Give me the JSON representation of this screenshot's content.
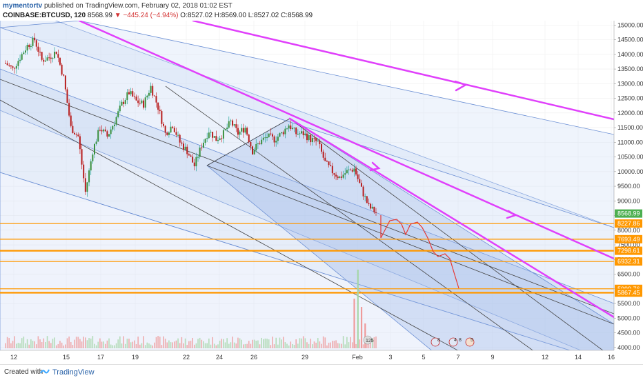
{
  "header": {
    "author": "mymentortv",
    "published": " published on TradingView.com, February 02, 2018 01:02 EST",
    "symbol": "COINBASE:BTCUSD, 120",
    "last": "8568.99",
    "change": "−445.24 (−4.94%)",
    "ohlc": "O:8527.02 H:8569.00 L:8527.02 C:8568.99"
  },
  "footer": {
    "created": "Created with",
    "brand": "TradingView"
  },
  "chart_data": {
    "type": "candlestick",
    "x_ticks": [
      "12",
      "15",
      "17",
      "19",
      "22",
      "24",
      "26",
      "29",
      "Feb",
      "3",
      "5",
      "7",
      "9",
      "12",
      "14",
      "16"
    ],
    "y_ticks": [
      4000,
      4500,
      5000,
      5500,
      6000,
      6500,
      7000,
      7500,
      8000,
      8500,
      9000,
      9500,
      10000,
      10500,
      11000,
      11500,
      12000,
      12500,
      13000,
      13500,
      14000,
      14500,
      15000
    ],
    "ylim": [
      3900,
      15150
    ],
    "y_tick_labels": [
      "4000.00",
      "4500.00",
      "5000.00",
      "5500.00",
      "6000.00",
      "6500.00",
      "7000.00",
      "7500.00",
      "8000.00",
      "8500.00",
      "9000.00",
      "9500.00",
      "10000.00",
      "10500.00",
      "11000.00",
      "11500.00",
      "12000.00",
      "12500.00",
      "13000.00",
      "13500.00",
      "14000.00",
      "14500.00",
      "15000.00"
    ],
    "price_labels": [
      {
        "label": "8568.99",
        "value": 8568.99,
        "color": "#4caf50"
      },
      {
        "label": "8227.86",
        "value": 8227.86,
        "color": "#ff9800"
      },
      {
        "label": "7693.49",
        "value": 7693.49,
        "color": "#ff9800"
      },
      {
        "label": "7298.61",
        "value": 7298.61,
        "color": "#ff9800"
      },
      {
        "label": "6932.31",
        "value": 6932.31,
        "color": "#ff9800"
      },
      {
        "label": "5999.76",
        "value": 5999.76,
        "color": "#ff9800"
      },
      {
        "label": "5867.45",
        "value": 5867.45,
        "color": "#ff9800"
      }
    ],
    "horizontal_levels": [
      8227.86,
      7693.49,
      7298.61,
      6932.31,
      5999.76,
      5867.45
    ],
    "price_path": [
      [
        0,
        13700
      ],
      [
        2,
        13500
      ],
      [
        4,
        13900
      ],
      [
        6,
        14300
      ],
      [
        8,
        14500
      ],
      [
        10,
        13800
      ],
      [
        12,
        13900
      ],
      [
        14,
        14100
      ],
      [
        16,
        13200
      ],
      [
        18,
        11500
      ],
      [
        20,
        11200
      ],
      [
        22,
        9300
      ],
      [
        24,
        10700
      ],
      [
        26,
        11500
      ],
      [
        28,
        11200
      ],
      [
        30,
        11700
      ],
      [
        32,
        12300
      ],
      [
        34,
        12700
      ],
      [
        36,
        12400
      ],
      [
        38,
        12300
      ],
      [
        40,
        12900
      ],
      [
        42,
        12200
      ],
      [
        44,
        11300
      ],
      [
        46,
        11600
      ],
      [
        48,
        11000
      ],
      [
        50,
        10700
      ],
      [
        52,
        10200
      ],
      [
        54,
        10900
      ],
      [
        56,
        11400
      ],
      [
        58,
        11100
      ],
      [
        60,
        11300
      ],
      [
        62,
        11700
      ],
      [
        64,
        11300
      ],
      [
        66,
        11500
      ],
      [
        68,
        10700
      ],
      [
        70,
        11000
      ],
      [
        72,
        11200
      ],
      [
        74,
        11100
      ],
      [
        76,
        11300
      ],
      [
        78,
        11600
      ],
      [
        80,
        11300
      ],
      [
        82,
        11300
      ],
      [
        84,
        11100
      ],
      [
        86,
        11000
      ],
      [
        88,
        10300
      ],
      [
        90,
        10000
      ],
      [
        92,
        9800
      ],
      [
        94,
        10000
      ],
      [
        96,
        10100
      ],
      [
        98,
        9400
      ],
      [
        100,
        8800
      ],
      [
        102,
        8600
      ]
    ],
    "volume_spikes": [
      [
        96,
        0.6
      ],
      [
        97,
        0.95
      ],
      [
        98,
        0.5
      ],
      [
        99,
        0.3
      ]
    ],
    "event_badges": [
      "125",
      "8",
      "4",
      "8",
      "5"
    ]
  }
}
